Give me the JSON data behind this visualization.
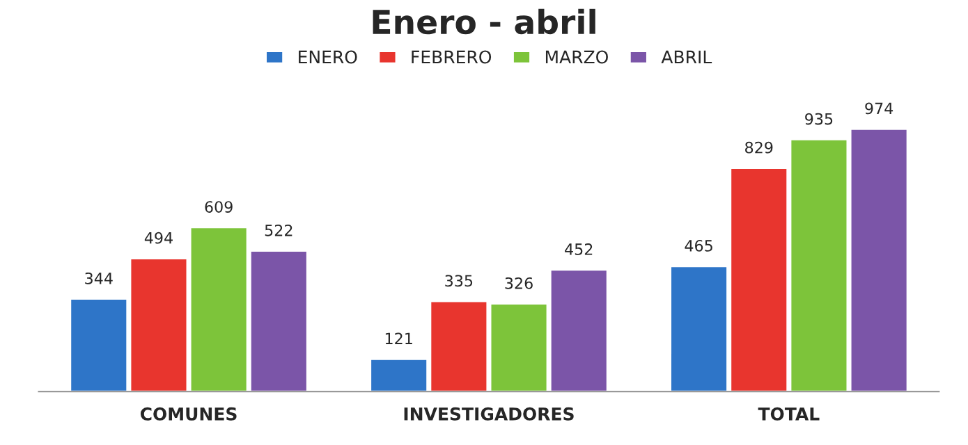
{
  "chart_data": {
    "type": "bar",
    "title": "Enero - abril",
    "categories": [
      "COMUNES",
      "INVESTIGADORES",
      "TOTAL"
    ],
    "series": [
      {
        "name": "ENERO",
        "color": "#2e75c8",
        "values": [
          344,
          121,
          465
        ]
      },
      {
        "name": "FEBRERO",
        "color": "#e8352e",
        "values": [
          494,
          335,
          829
        ]
      },
      {
        "name": "MARZO",
        "color": "#7dc43a",
        "values": [
          609,
          326,
          935
        ]
      },
      {
        "name": "ABRIL",
        "color": "#7b55a8",
        "values": [
          522,
          452,
          974
        ]
      }
    ],
    "data_labels": true,
    "legend": "top",
    "grid": false
  }
}
